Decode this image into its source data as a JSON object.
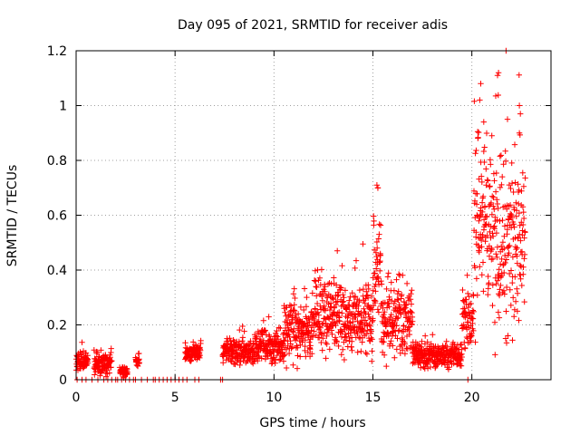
{
  "chart_data": {
    "type": "scatter",
    "title": "Day 095 of 2021, SRMTID for receiver adis",
    "xlabel": "GPS time / hours",
    "ylabel": "SRMTID / TECUs",
    "xlim": [
      0,
      24
    ],
    "ylim": [
      0,
      1.2
    ],
    "x_ticks": [
      0,
      5,
      10,
      15,
      20
    ],
    "y_ticks": [
      0,
      0.2,
      0.4,
      0.6,
      0.8,
      1,
      1.2
    ],
    "x_tick_labels": [
      "0",
      "5",
      "10",
      "15",
      "20"
    ],
    "y_tick_labels": [
      "0",
      "0.2",
      "0.4",
      "0.6",
      "0.8",
      "1",
      "1.2"
    ],
    "grid": true,
    "marker": "+",
    "color": "#ff0000",
    "series": [
      {
        "name": "SRMTID",
        "segments": [
          {
            "x0": 0.0,
            "x1": 0.6,
            "base": 0.07,
            "amp": 0.03
          },
          {
            "x0": 0.9,
            "x1": 1.8,
            "base": 0.06,
            "amp": 0.04
          },
          {
            "x0": 2.2,
            "x1": 2.6,
            "base": 0.03,
            "amp": 0.02
          },
          {
            "x0": 3.0,
            "x1": 3.2,
            "base": 0.07,
            "amp": 0.02
          },
          {
            "x0": 5.5,
            "x1": 6.3,
            "base": 0.1,
            "amp": 0.03
          },
          {
            "x0": 7.4,
            "x1": 9.0,
            "base": 0.1,
            "amp": 0.04
          },
          {
            "x0": 9.0,
            "x1": 10.5,
            "base": 0.12,
            "amp": 0.06
          },
          {
            "x0": 10.5,
            "x1": 12.0,
            "base": 0.18,
            "amp": 0.1
          },
          {
            "x0": 12.0,
            "x1": 13.5,
            "base": 0.24,
            "amp": 0.12
          },
          {
            "x0": 13.5,
            "x1": 15.0,
            "base": 0.2,
            "amp": 0.12
          },
          {
            "x0": 15.0,
            "x1": 15.4,
            "base": 0.4,
            "amp": 0.18
          },
          {
            "x0": 15.4,
            "x1": 17.0,
            "base": 0.22,
            "amp": 0.12
          },
          {
            "x0": 17.0,
            "x1": 19.5,
            "base": 0.09,
            "amp": 0.04
          },
          {
            "x0": 19.5,
            "x1": 20.1,
            "base": 0.22,
            "amp": 0.12
          },
          {
            "x0": 20.1,
            "x1": 21.0,
            "base": 0.55,
            "amp": 0.3
          },
          {
            "x0": 21.0,
            "x1": 22.7,
            "base": 0.5,
            "amp": 0.3
          }
        ],
        "peaks": [
          {
            "x": 15.2,
            "y": 0.71
          },
          {
            "x": 15.25,
            "y": 0.7
          },
          {
            "x": 20.45,
            "y": 1.08
          },
          {
            "x": 20.4,
            "y": 1.02
          },
          {
            "x": 21.3,
            "y": 1.11
          },
          {
            "x": 21.35,
            "y": 1.12
          },
          {
            "x": 22.4,
            "y": 1.0
          },
          {
            "x": 22.45,
            "y": 0.97
          },
          {
            "x": 20.6,
            "y": 0.94
          },
          {
            "x": 21.8,
            "y": 0.95
          },
          {
            "x": 22.4,
            "y": 0.9
          },
          {
            "x": 13.2,
            "y": 0.47
          }
        ],
        "zero_points": [
          0.05,
          0.3,
          0.5,
          0.8,
          1.1,
          1.4,
          1.6,
          1.8,
          2.0,
          2.1,
          2.3,
          2.5,
          2.7,
          2.9,
          3.0,
          3.3,
          3.6,
          3.9,
          4.0,
          4.2,
          4.4,
          4.6,
          4.8,
          5.0,
          5.2,
          5.4,
          5.6,
          6.0,
          6.2,
          7.3,
          7.4,
          19.8
        ]
      }
    ]
  }
}
